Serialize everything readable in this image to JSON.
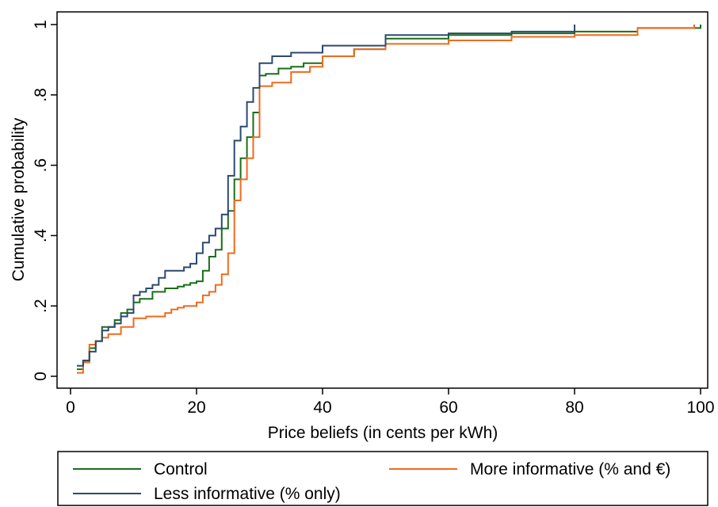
{
  "chart_data": {
    "type": "line",
    "xlabel": "Price beliefs (in cents per kWh)",
    "ylabel": "Cumulative probability",
    "xlim": [
      0,
      100
    ],
    "ylim": [
      0,
      1
    ],
    "xticks": [
      0,
      20,
      40,
      60,
      80,
      100
    ],
    "yticks": [
      {
        "value": 0,
        "label": "0"
      },
      {
        "value": 0.2,
        "label": ".2"
      },
      {
        "value": 0.4,
        "label": ".4"
      },
      {
        "value": 0.6,
        "label": ".6"
      },
      {
        "value": 0.8,
        "label": ".8"
      },
      {
        "value": 1,
        "label": "1"
      }
    ],
    "grid": false,
    "legend_position": "bottom",
    "series": [
      {
        "name": "Control",
        "color": "#1a6e1a",
        "x": [
          1,
          2,
          3,
          4,
          5,
          7,
          8,
          9,
          10,
          11,
          13,
          15,
          17,
          18,
          19,
          20,
          21,
          22,
          23,
          24,
          25,
          26,
          27,
          28,
          29,
          30,
          31,
          33,
          35,
          37,
          40,
          45,
          50,
          60,
          70,
          80,
          90,
          100
        ],
        "y": [
          0.02,
          0.04,
          0.08,
          0.1,
          0.14,
          0.16,
          0.18,
          0.19,
          0.21,
          0.22,
          0.24,
          0.25,
          0.255,
          0.26,
          0.265,
          0.27,
          0.3,
          0.34,
          0.36,
          0.42,
          0.47,
          0.56,
          0.62,
          0.68,
          0.75,
          0.855,
          0.86,
          0.875,
          0.88,
          0.89,
          0.91,
          0.93,
          0.96,
          0.97,
          0.975,
          0.98,
          0.99,
          1.0
        ]
      },
      {
        "name": "More informative (% and €)",
        "color": "#f06a1d",
        "x": [
          1,
          2,
          3,
          4,
          5,
          6,
          8,
          10,
          12,
          15,
          16,
          17,
          18,
          20,
          21,
          22,
          23,
          24,
          25,
          26,
          27,
          28,
          29,
          30,
          32,
          35,
          38,
          40,
          45,
          50,
          60,
          70,
          80,
          90,
          99
        ],
        "y": [
          0.01,
          0.04,
          0.09,
          0.1,
          0.11,
          0.12,
          0.14,
          0.165,
          0.17,
          0.18,
          0.19,
          0.195,
          0.2,
          0.21,
          0.23,
          0.24,
          0.26,
          0.29,
          0.35,
          0.5,
          0.56,
          0.62,
          0.68,
          0.825,
          0.835,
          0.865,
          0.88,
          0.91,
          0.93,
          0.945,
          0.955,
          0.965,
          0.97,
          0.99,
          1.0
        ]
      },
      {
        "name": "Less informative (% only)",
        "color": "#2b4a6e",
        "x": [
          1,
          2,
          3,
          4,
          5,
          6,
          7,
          8,
          9,
          10,
          11,
          12,
          13,
          14,
          15,
          18,
          19,
          20,
          21,
          22,
          23,
          24,
          25,
          26,
          27,
          28,
          29,
          30,
          32,
          35,
          40,
          50,
          60,
          70,
          80
        ],
        "y": [
          0.03,
          0.045,
          0.07,
          0.1,
          0.13,
          0.14,
          0.15,
          0.17,
          0.18,
          0.23,
          0.24,
          0.25,
          0.26,
          0.28,
          0.3,
          0.31,
          0.32,
          0.35,
          0.38,
          0.4,
          0.42,
          0.46,
          0.57,
          0.67,
          0.71,
          0.78,
          0.82,
          0.89,
          0.91,
          0.92,
          0.94,
          0.97,
          0.975,
          0.98,
          1.0
        ]
      }
    ]
  }
}
